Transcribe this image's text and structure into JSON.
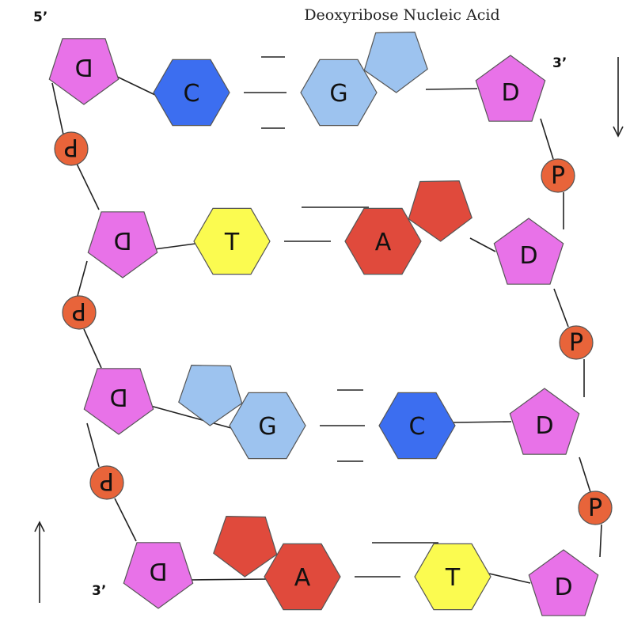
{
  "title": "Deoxyribose Nucleic Acid",
  "strand_ends": {
    "left_top": "5’",
    "right_top": "3’",
    "left_bottom": "3’"
  },
  "colors": {
    "deoxyribose": "#e872e8",
    "phosphate": "#e8643a",
    "cytosine": "#3c6ef0",
    "guanine": "#9dc3ef",
    "thymine": "#fbfb50",
    "adenine": "#e04a3c",
    "stroke": "#555555"
  },
  "rungs": [
    {
      "left_sugar": "D",
      "left_base": "C",
      "right_base": "G",
      "right_sugar": "D",
      "hydrogen_bonds": 3
    },
    {
      "left_sugar": "D",
      "left_base": "T",
      "right_base": "A",
      "right_sugar": "D",
      "hydrogen_bonds": 2
    },
    {
      "left_sugar": "D",
      "left_base": "G",
      "right_base": "C",
      "right_sugar": "D",
      "hydrogen_bonds": 3
    },
    {
      "left_sugar": "D",
      "left_base": "A",
      "right_base": "T",
      "right_sugar": "D",
      "hydrogen_bonds": 2
    }
  ],
  "left_phosphates": [
    "P",
    "P",
    "P"
  ],
  "right_phosphates": [
    "P",
    "P",
    "P"
  ]
}
